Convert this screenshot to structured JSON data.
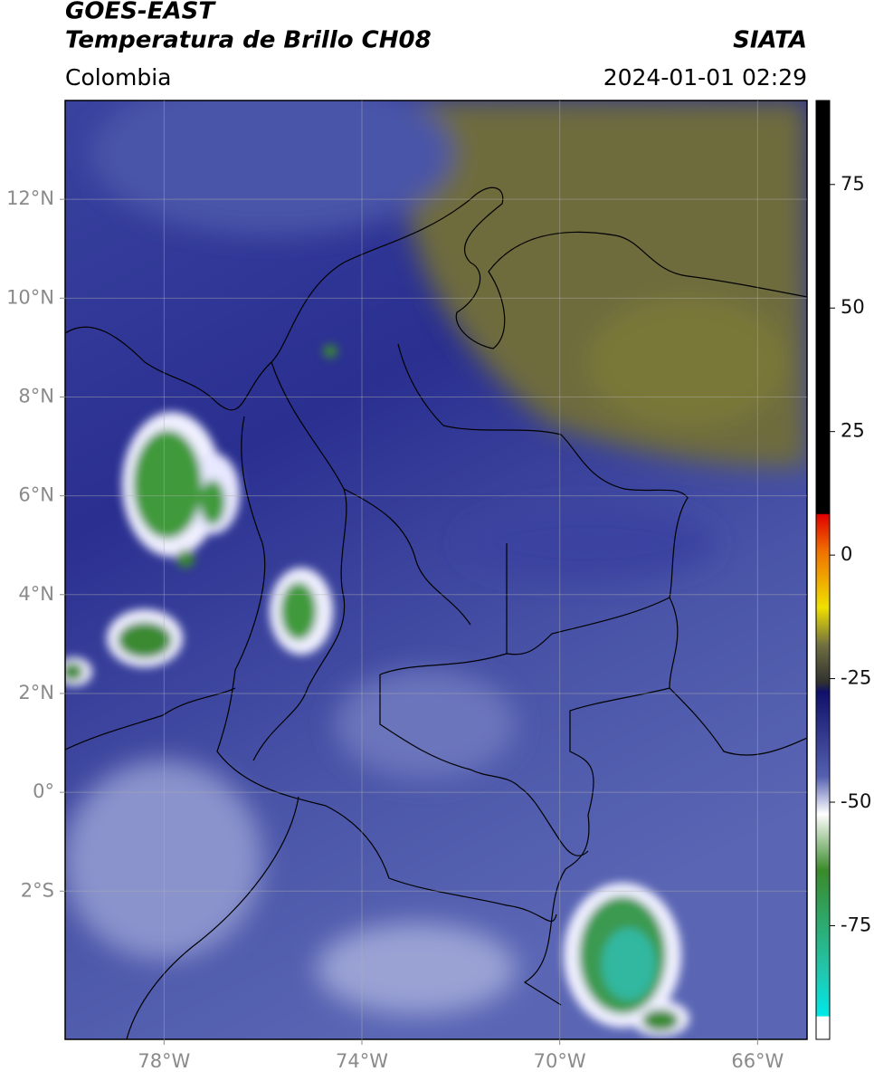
{
  "header": {
    "title_line1": "GOES-EAST",
    "title_line2": "Temperatura de Brillo CH08",
    "source": "SIATA",
    "region": "Colombia",
    "datetime": "2024-01-01 02:29"
  },
  "map": {
    "xlim": [
      -80,
      -65
    ],
    "ylim": [
      -5,
      14
    ],
    "xticks": [
      {
        "value": -78,
        "label": "78°W"
      },
      {
        "value": -74,
        "label": "74°W"
      },
      {
        "value": -70,
        "label": "70°W"
      },
      {
        "value": -66,
        "label": "66°W"
      }
    ],
    "yticks": [
      {
        "value": 12,
        "label": "12°N"
      },
      {
        "value": 10,
        "label": "10°N"
      },
      {
        "value": 8,
        "label": "8°N"
      },
      {
        "value": 6,
        "label": "6°N"
      },
      {
        "value": 4,
        "label": "4°N"
      },
      {
        "value": 2,
        "label": "2°N"
      },
      {
        "value": 0,
        "label": "0°"
      },
      {
        "value": -2,
        "label": "2°S"
      }
    ],
    "grid": true
  },
  "colorbar": {
    "lim": [
      -98,
      92
    ],
    "ticks": [
      75,
      50,
      25,
      0,
      -25,
      -50,
      -75
    ]
  }
}
